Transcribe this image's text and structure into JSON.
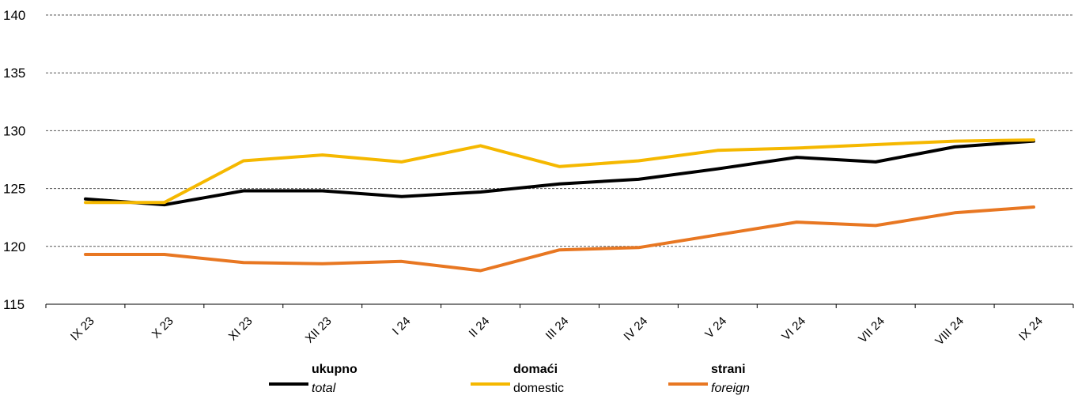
{
  "chart_data": {
    "type": "line",
    "categories": [
      "IX 23",
      "X 23",
      "XI 23",
      "XII 23",
      "I 24",
      "II 24",
      "III 24",
      "IV 24",
      "V 24",
      "VI 24",
      "VII 24",
      "VIII 24",
      "IX 24"
    ],
    "ylim": [
      115,
      140
    ],
    "yticks": [
      115,
      120,
      125,
      130,
      135,
      140
    ],
    "grid": true,
    "legend_position": "bottom",
    "series": [
      {
        "name": "ukupno",
        "subtitle": "total",
        "color": "#000000",
        "values": [
          124.1,
          123.6,
          124.8,
          124.8,
          124.3,
          124.7,
          125.4,
          125.8,
          126.7,
          127.7,
          127.3,
          128.6,
          129.1
        ]
      },
      {
        "name": "domaći",
        "subtitle": "domestic",
        "color": "#F5B800",
        "values": [
          123.8,
          123.8,
          127.4,
          127.9,
          127.3,
          128.7,
          126.9,
          127.4,
          128.3,
          128.5,
          128.8,
          129.1,
          129.2
        ]
      },
      {
        "name": "strani",
        "subtitle": "foreign",
        "color": "#E87722",
        "values": [
          119.3,
          119.3,
          118.6,
          118.5,
          118.7,
          117.9,
          119.7,
          119.9,
          121.0,
          122.1,
          121.8,
          122.9,
          123.4
        ]
      }
    ]
  }
}
